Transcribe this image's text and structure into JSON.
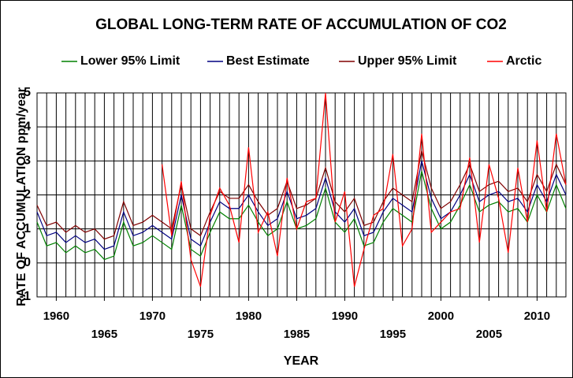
{
  "chart_data": {
    "type": "line",
    "title": "GLOBAL LONG-TERM RATE OF ACCUMULATION OF CO2",
    "x_label": "YEAR",
    "y_label": "RATE OF ACCUMULATION ppm/year",
    "x": [
      1958,
      1959,
      1960,
      1961,
      1962,
      1963,
      1964,
      1965,
      1966,
      1967,
      1968,
      1969,
      1970,
      1971,
      1972,
      1973,
      1974,
      1975,
      1976,
      1977,
      1978,
      1979,
      1980,
      1981,
      1982,
      1983,
      1984,
      1985,
      1986,
      1987,
      1988,
      1989,
      1990,
      1991,
      1992,
      1993,
      1994,
      1995,
      1996,
      1997,
      1998,
      1999,
      2000,
      2001,
      2002,
      2003,
      2004,
      2005,
      2006,
      2007,
      2008,
      2009,
      2010,
      2011,
      2012,
      2013
    ],
    "series": [
      {
        "name": "Lower 95% Limit",
        "color": "#008000",
        "values": [
          1.2,
          0.5,
          0.6,
          0.3,
          0.5,
          0.3,
          0.4,
          0.1,
          0.2,
          1.2,
          0.5,
          0.6,
          0.8,
          0.6,
          0.4,
          1.7,
          0.4,
          0.2,
          0.9,
          1.5,
          1.3,
          1.3,
          1.7,
          1.2,
          0.8,
          1.0,
          1.8,
          1.0,
          1.1,
          1.3,
          2.2,
          1.2,
          0.9,
          1.3,
          0.5,
          0.6,
          1.2,
          1.6,
          1.4,
          1.2,
          2.7,
          1.6,
          1.0,
          1.2,
          1.7,
          2.3,
          1.5,
          1.7,
          1.8,
          1.5,
          1.6,
          1.2,
          2.0,
          1.5,
          2.3,
          1.6
        ]
      },
      {
        "name": "Best Estimate",
        "color": "#000080",
        "values": [
          1.5,
          0.8,
          0.9,
          0.6,
          0.8,
          0.6,
          0.7,
          0.4,
          0.5,
          1.5,
          0.8,
          0.9,
          1.1,
          0.9,
          0.7,
          2.0,
          0.7,
          0.5,
          1.2,
          1.8,
          1.6,
          1.6,
          2.0,
          1.5,
          1.1,
          1.3,
          2.1,
          1.3,
          1.4,
          1.6,
          2.5,
          1.5,
          1.2,
          1.6,
          0.8,
          0.9,
          1.5,
          1.9,
          1.7,
          1.5,
          3.0,
          1.9,
          1.3,
          1.5,
          2.0,
          2.6,
          1.8,
          2.0,
          2.1,
          1.8,
          1.9,
          1.5,
          2.3,
          1.8,
          2.6,
          2.0
        ]
      },
      {
        "name": "Upper 95% Limit",
        "color": "#800000",
        "values": [
          1.7,
          1.1,
          1.2,
          0.9,
          1.1,
          0.9,
          1.0,
          0.7,
          0.8,
          1.8,
          1.1,
          1.2,
          1.4,
          1.2,
          1.0,
          2.3,
          1.0,
          0.8,
          1.5,
          2.1,
          1.9,
          1.9,
          2.3,
          1.8,
          1.4,
          1.6,
          2.4,
          1.6,
          1.7,
          1.9,
          2.8,
          1.8,
          1.5,
          1.9,
          1.1,
          1.2,
          1.8,
          2.2,
          2.0,
          1.8,
          3.3,
          2.2,
          1.6,
          1.8,
          2.3,
          2.9,
          2.1,
          2.3,
          2.4,
          2.1,
          2.2,
          1.8,
          2.6,
          2.1,
          2.9,
          2.3
        ]
      },
      {
        "name": "Arctic",
        "color": "#ff0000",
        "values": [
          null,
          null,
          null,
          null,
          null,
          null,
          null,
          null,
          null,
          null,
          null,
          null,
          null,
          2.9,
          0.8,
          2.4,
          0.1,
          -0.7,
          1.4,
          2.2,
          1.7,
          0.6,
          3.4,
          0.9,
          1.5,
          0.2,
          2.5,
          1.0,
          1.8,
          1.9,
          5.0,
          1.2,
          2.1,
          -0.7,
          0.4,
          1.4,
          1.6,
          3.2,
          0.5,
          1.0,
          3.8,
          0.9,
          1.2,
          1.5,
          1.6,
          3.1,
          0.6,
          2.9,
          1.9,
          0.3,
          2.8,
          1.2,
          3.6,
          1.5,
          3.8,
          2.3
        ]
      }
    ],
    "xlim": [
      1958,
      2013
    ],
    "xticks": [
      1960,
      1965,
      1970,
      1975,
      1980,
      1985,
      1990,
      1995,
      2000,
      2005,
      2010
    ],
    "xgrid": [
      1959,
      1960,
      1961,
      1962,
      1963,
      1964,
      1965,
      1966,
      1967,
      1968,
      1969,
      1970,
      1971,
      1972,
      1973,
      1974,
      1975,
      1976,
      1977,
      1978,
      1979,
      1980,
      1981,
      1982,
      1983,
      1984,
      1985,
      1986,
      1987,
      1988,
      1989,
      1990,
      1991,
      1992,
      1993,
      1994,
      1995,
      1996,
      1997,
      1998,
      1999,
      2000,
      2001,
      2002,
      2003,
      2004,
      2005,
      2006,
      2007,
      2008,
      2009,
      2010,
      2011,
      2012
    ],
    "ylim": [
      -1,
      5
    ],
    "yticks": [
      -1,
      0,
      1,
      2,
      3,
      4,
      5
    ],
    "grid": true,
    "legend": "top"
  }
}
